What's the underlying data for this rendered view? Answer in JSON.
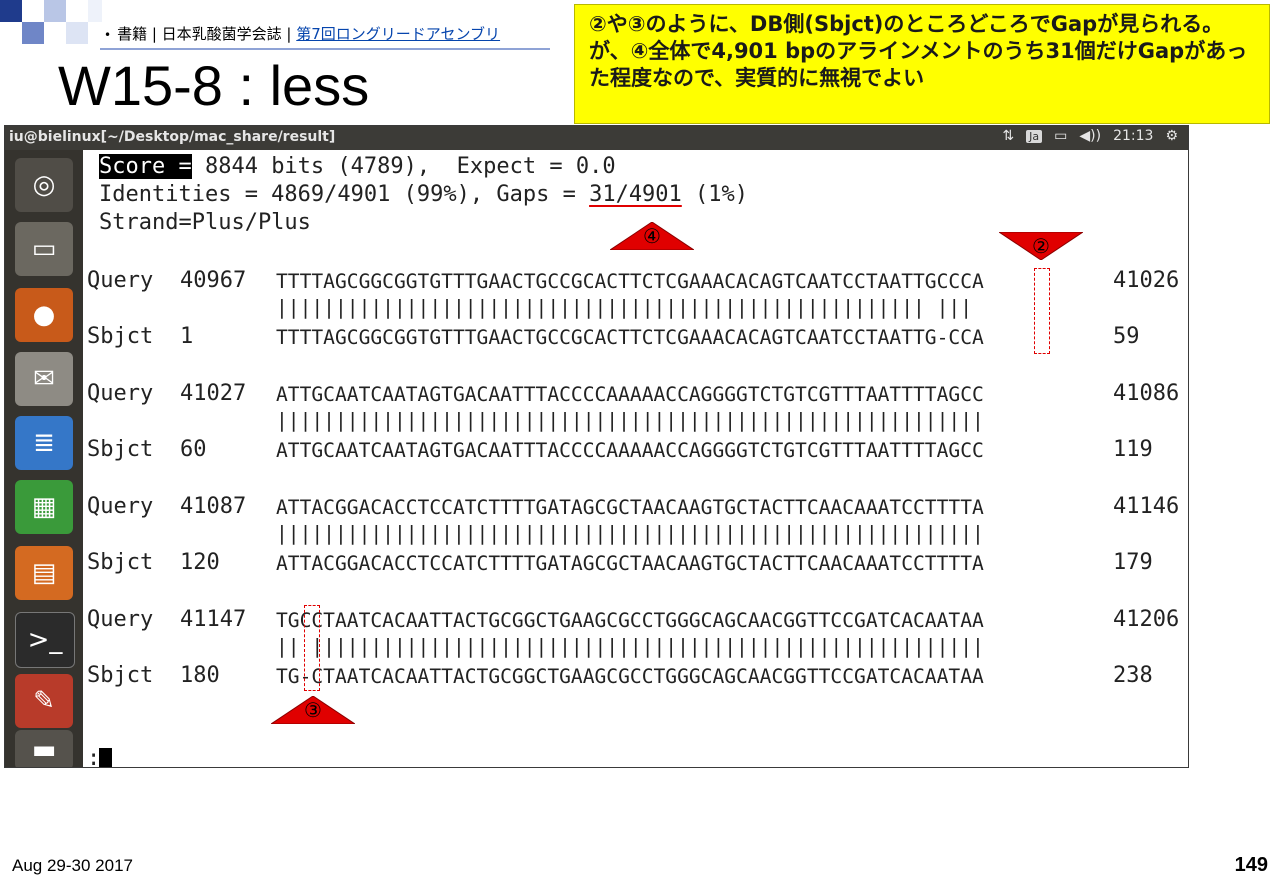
{
  "breadcrumb": {
    "bullet": "•",
    "text": "書籍 | 日本乳酸菌学会誌 | ",
    "link": "第7回ロングリードアセンブリ"
  },
  "slide_title": "W15-8 : less",
  "callout": {
    "text": "②や③のように、DB側(Sbjct)のところどころでGapが見られる。が、④全体で4,901 bpのアラインメントのうち31個だけGapがあった程度なので、実質的に無視でよい"
  },
  "terminal": {
    "title": "iu@bielinux[~/Desktop/mac_share/result]",
    "indicators": {
      "network": "⇅",
      "ime": "Ja",
      "battery": "▭",
      "volume": "◀))",
      "time": "21:13",
      "settings": "⚙"
    },
    "summary": {
      "score_label": "Score =",
      "score_rest": " 8844 bits (4789),  Expect = 0.0",
      "identities_pre": "Identities = 4869/4901 (99%), Gaps = ",
      "gaps_value": "31/4901",
      "identities_post": " (1%)",
      "strand": "Strand=Plus/Plus"
    },
    "blocks": [
      {
        "q_label": "Query",
        "q_start": "40967",
        "q_seq": "TTTTAGCGGCGGTGTTTGAACTGCCGCACTTCTCGAAACACAGTCAATCCTAATTGCCCA",
        "q_end": "41026",
        "match": "||||||||||||||||||||||||||||||||||||||||||||||||||||||| |||",
        "s_label": "Sbjct",
        "s_start": "1",
        "s_seq": "TTTTAGCGGCGGTGTTTGAACTGCCGCACTTCTCGAAACACAGTCAATCCTAATTG-CCA",
        "s_end": "59"
      },
      {
        "q_label": "Query",
        "q_start": "41027",
        "q_seq": "ATTGCAATCAATAGTGACAATTTACCCCAAAAACCAGGGGTCTGTCGTTTAATTTTAGCC",
        "q_end": "41086",
        "match": "||||||||||||||||||||||||||||||||||||||||||||||||||||||||||||",
        "s_label": "Sbjct",
        "s_start": "60",
        "s_seq": "ATTGCAATCAATAGTGACAATTTACCCCAAAAACCAGGGGTCTGTCGTTTAATTTTAGCC",
        "s_end": "119"
      },
      {
        "q_label": "Query",
        "q_start": "41087",
        "q_seq": "ATTACGGACACCTCCATCTTTTGATAGCGCTAACAAGTGCTACTTCAACAAATCCTTTTA",
        "q_end": "41146",
        "match": "||||||||||||||||||||||||||||||||||||||||||||||||||||||||||||",
        "s_label": "Sbjct",
        "s_start": "120",
        "s_seq": "ATTACGGACACCTCCATCTTTTGATAGCGCTAACAAGTGCTACTTCAACAAATCCTTTTA",
        "s_end": "179"
      },
      {
        "q_label": "Query",
        "q_start": "41147",
        "q_seq": "TGCCTAATCACAATTACTGCGGCTGAAGCGCCTGGGCAGCAACGGTTCCGATCACAATAA",
        "q_end": "41206",
        "match": "|| |||||||||||||||||||||||||||||||||||||||||||||||||||||||||",
        "s_label": "Sbjct",
        "s_start": "180",
        "s_seq": "TG-CTAATCACAATTACTGCGGCTGAAGCGCCTGGGCAGCAACGGTTCCGATCACAATAA",
        "s_end": "238"
      }
    ],
    "prompt": ":",
    "markers": {
      "m2": "②",
      "m3": "③",
      "m4": "④"
    },
    "launcher_icons": [
      "ubuntu-dash-icon",
      "file-manager-icon",
      "firefox-icon",
      "mail-icon",
      "writer-icon",
      "calc-icon",
      "impress-icon",
      "terminal-icon",
      "install-icon",
      "trash-icon"
    ]
  },
  "footer": {
    "date": "Aug 29-30 2017",
    "page": "149"
  },
  "colors": {
    "callout_bg": "#ffff00",
    "marker": "#e00000",
    "titlebar": "#3c3b37",
    "launcher": "#35332e"
  }
}
